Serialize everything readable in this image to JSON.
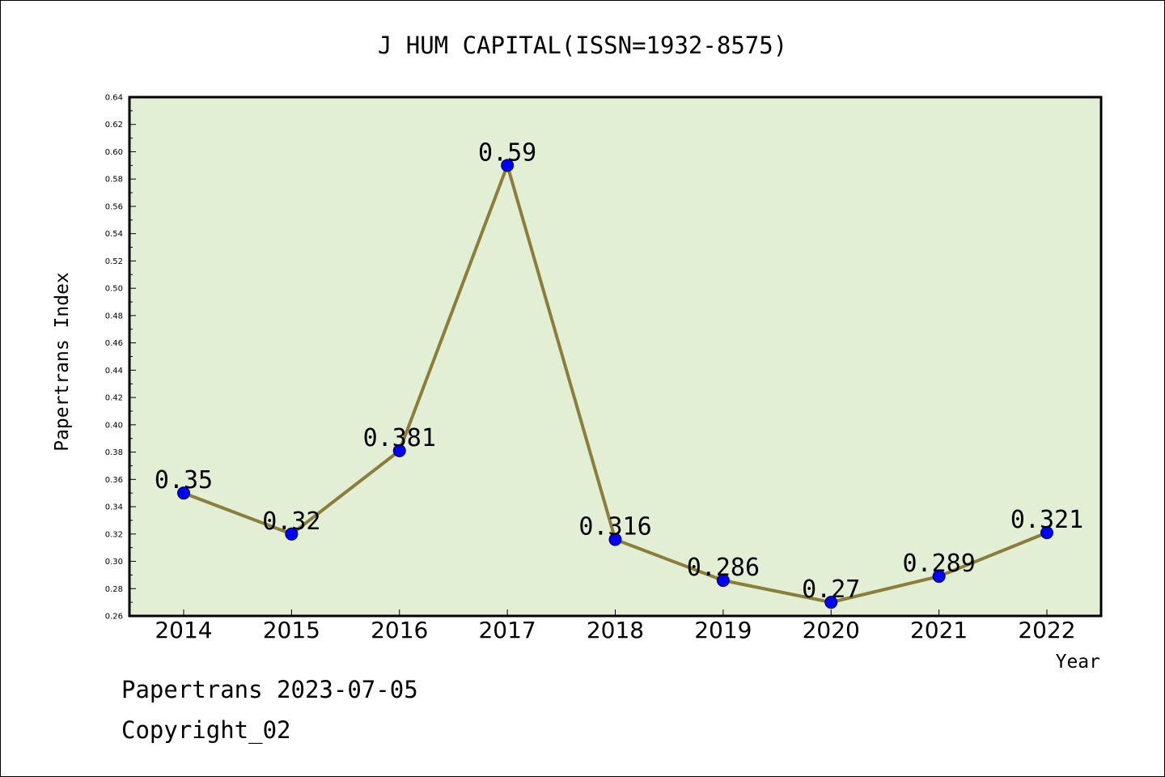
{
  "footer": {
    "source_date": "Papertrans 2023-07-05",
    "copyright": "Copyright_02"
  },
  "colors": {
    "plot_background": "#e2efd5",
    "line": "#8b7d3a",
    "marker": "#0000ff",
    "frame": "#000000"
  },
  "chart_data": {
    "type": "line",
    "title": "J HUM CAPITAL(ISSN=1932-8575)",
    "xlabel": "Year",
    "ylabel": "Papertrans Index",
    "categories": [
      "2014",
      "2015",
      "2016",
      "2017",
      "2018",
      "2019",
      "2020",
      "2021",
      "2022"
    ],
    "series": [
      {
        "values": [
          0.35,
          0.32,
          0.381,
          0.59,
          0.316,
          0.286,
          0.27,
          0.289,
          0.321
        ],
        "labels": [
          "0.35",
          "0.32",
          "0.381",
          "0.59",
          "0.316",
          "0.286",
          "0.27",
          "0.289",
          "0.321"
        ]
      }
    ],
    "ylim": [
      0.26,
      0.64
    ],
    "yticks": [
      "0.26",
      "0.28",
      "0.30",
      "0.32",
      "0.34",
      "0.36",
      "0.38",
      "0.40",
      "0.42",
      "0.44",
      "0.46",
      "0.48",
      "0.50",
      "0.52",
      "0.54",
      "0.56",
      "0.58",
      "0.60",
      "0.62",
      "0.64"
    ],
    "grid": false,
    "legend": "none"
  }
}
